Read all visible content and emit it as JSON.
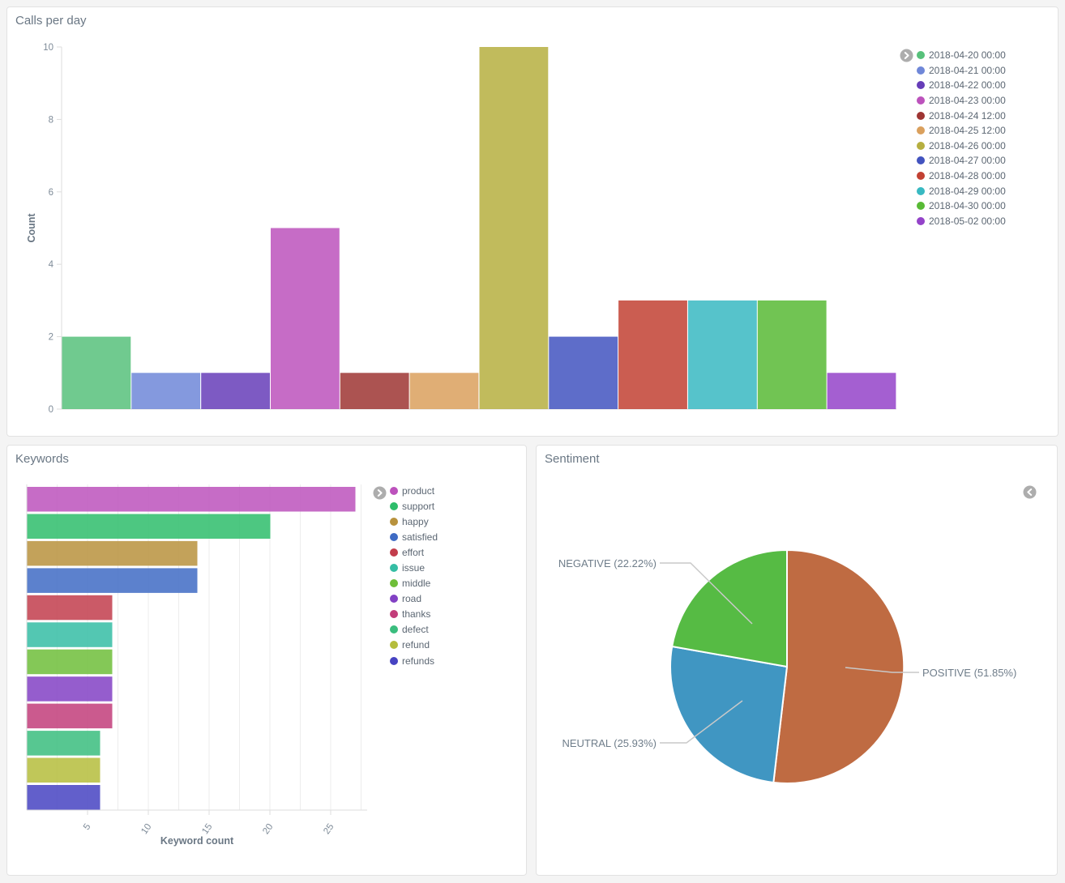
{
  "panels": {
    "calls": {
      "title": "Calls per day"
    },
    "keywords": {
      "title": "Keywords"
    },
    "sentiment": {
      "title": "Sentiment"
    }
  },
  "icons": {
    "calls_legend_toggle": "chevron-right-circle",
    "keywords_legend_toggle": "chevron-right-circle",
    "sentiment_collapse_toggle": "chevron-left-circle"
  },
  "colors": {
    "page_background": "#f4f4f4",
    "panel_background": "#ffffff",
    "panel_border": "#e2e2e2",
    "axis_line": "#dddddd",
    "gridline": "#ededed",
    "title_text": "#6a7784",
    "tick_text": "#7e8b98",
    "legend_text": "#5c6773",
    "leader_line": "#c9c9c9",
    "toggle_icon": "#adadad"
  },
  "chart_data": [
    {
      "type": "bar",
      "orientation": "vertical",
      "title": "Calls per day",
      "xlabel": "",
      "ylabel": "Count",
      "ylim": [
        0,
        10
      ],
      "yticks": [
        0,
        2,
        4,
        6,
        8,
        10
      ],
      "grid": false,
      "legend_position": "right",
      "series": [
        {
          "label": "2018-04-20 00:00",
          "value": 2,
          "color": "#57c17b"
        },
        {
          "label": "2018-04-21 00:00",
          "value": 1,
          "color": "#6f87d8"
        },
        {
          "label": "2018-04-22 00:00",
          "value": 1,
          "color": "#663db8"
        },
        {
          "label": "2018-04-23 00:00",
          "value": 5,
          "color": "#bc52bc"
        },
        {
          "label": "2018-04-24 12:00",
          "value": 1,
          "color": "#9e3533"
        },
        {
          "label": "2018-04-25 12:00",
          "value": 1,
          "color": "#daa05d"
        },
        {
          "label": "2018-04-26 00:00",
          "value": 10,
          "color": "#b6af40"
        },
        {
          "label": "2018-04-27 00:00",
          "value": 2,
          "color": "#4253bf"
        },
        {
          "label": "2018-04-28 00:00",
          "value": 3,
          "color": "#c24133"
        },
        {
          "label": "2018-04-29 00:00",
          "value": 3,
          "color": "#38b9c2"
        },
        {
          "label": "2018-04-30 00:00",
          "value": 3,
          "color": "#58ba35"
        },
        {
          "label": "2018-05-02 00:00",
          "value": 1,
          "color": "#9443c9"
        }
      ]
    },
    {
      "type": "bar",
      "orientation": "horizontal",
      "title": "Keywords",
      "xlabel": "Keyword count",
      "xlim": [
        0,
        28
      ],
      "xticks": [
        5,
        10,
        15,
        20,
        25
      ],
      "grid": true,
      "legend_position": "right",
      "series": [
        {
          "label": "product",
          "value": 27,
          "color": "#bc52bc"
        },
        {
          "label": "support",
          "value": 20,
          "color": "#2ebd6b"
        },
        {
          "label": "happy",
          "value": 14,
          "color": "#b8923d"
        },
        {
          "label": "satisfied",
          "value": 14,
          "color": "#3f6bc4"
        },
        {
          "label": "effort",
          "value": 7,
          "color": "#c23d4c"
        },
        {
          "label": "issue",
          "value": 7,
          "color": "#35bda4"
        },
        {
          "label": "middle",
          "value": 7,
          "color": "#6fbe39"
        },
        {
          "label": "road",
          "value": 7,
          "color": "#8241c4"
        },
        {
          "label": "thanks",
          "value": 7,
          "color": "#c23d7a"
        },
        {
          "label": "defect",
          "value": 6,
          "color": "#3abd7e"
        },
        {
          "label": "refund",
          "value": 6,
          "color": "#b5bd3c"
        },
        {
          "label": "refunds",
          "value": 6,
          "color": "#4743c2"
        }
      ]
    },
    {
      "type": "pie",
      "title": "Sentiment",
      "start_angle_deg": 0,
      "clockwise": true,
      "slices": [
        {
          "label": "POSITIVE",
          "percent": 51.85,
          "display": "POSITIVE (51.85%)",
          "color": "#bf6b42",
          "label_side": "right"
        },
        {
          "label": "NEUTRAL",
          "percent": 25.93,
          "display": "NEUTRAL (25.93%)",
          "color": "#4096c2",
          "label_side": "left"
        },
        {
          "label": "NEGATIVE",
          "percent": 22.22,
          "display": "NEGATIVE (22.22%)",
          "color": "#56bb44",
          "label_side": "left"
        }
      ]
    }
  ]
}
